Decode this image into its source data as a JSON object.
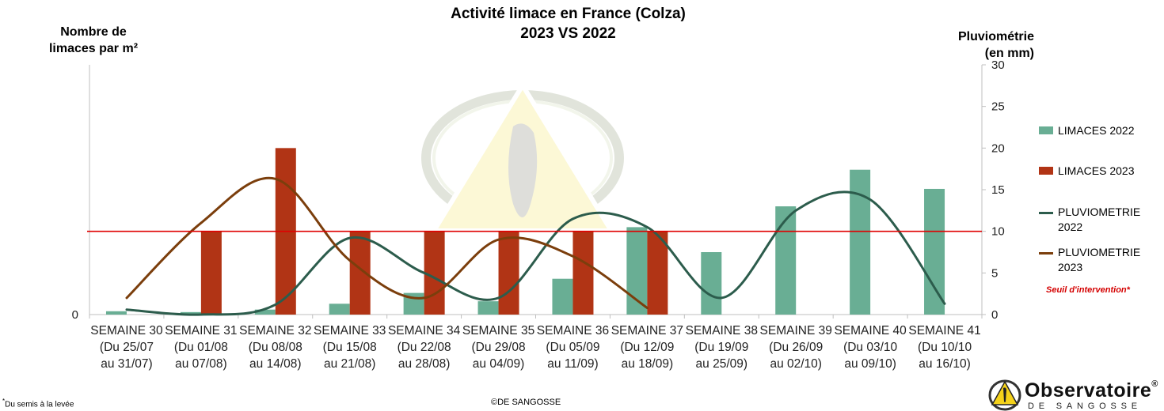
{
  "title_line1": "Activité limace en France (Colza)",
  "title_line2": "2023 VS 2022",
  "colors": {
    "limaces_2022": "#69ae94",
    "limaces_2023": "#b13415",
    "pluvio_2022": "#2c5c4c",
    "pluvio_2023": "#7b3e0c",
    "seuil": "#e00000"
  },
  "legend": {
    "limaces_2022": "LIMACES 2022",
    "limaces_2023": "LIMACES 2023",
    "pluvio_2022": "PLUVIOMETRIE\n2022",
    "pluvio_2023": "PLUVIOMETRIE\n2023",
    "seuil": "Seuil d'intervention*"
  },
  "left_axis_label": "Nombre de\nlimaces par m²",
  "right_axis_label": "Pluviométrie\n(en mm)",
  "footnote_star": "*",
  "footnote_text": "Du semis à la levée",
  "copyright": "©DE SANGOSSE",
  "logo": {
    "name": "Observatoire",
    "mark": "®",
    "sub": "DE SANGOSSE"
  },
  "chart_data": {
    "type": "bar",
    "categories": [
      "SEMAINE 30\n(Du 25/07\nau 31/07)",
      "SEMAINE 31\n(Du 01/08\nau 07/08)",
      "SEMAINE 32\n(Du 08/08\nau 14/08)",
      "SEMAINE 33\n(Du 15/08\nau 21/08)",
      "SEMAINE 34\n(Du 22/08\nau 28/08)",
      "SEMAINE 35\n(Du 29/08\nau 04/09)",
      "SEMAINE 36\n(Du 05/09\nau 11/09)",
      "SEMAINE 37\n(Du 12/09\nau 18/09)",
      "SEMAINE 38\n(Du 19/09\nau 25/09)",
      "SEMAINE 39\n(Du 26/09\nau 02/10)",
      "SEMAINE 40\n(Du 03/10\nau 09/10)",
      "SEMAINE 41\n(Du 10/10\nau 16/10)"
    ],
    "bar_series": [
      {
        "name": "LIMACES 2022",
        "values": [
          0.4,
          0.3,
          0.6,
          1.3,
          2.6,
          1.6,
          4.3,
          10.5,
          7.5,
          13.0,
          17.4,
          15.1
        ]
      },
      {
        "name": "LIMACES 2023",
        "values": [
          null,
          10.0,
          20.0,
          10.0,
          10.0,
          10.0,
          10.0,
          10.0,
          null,
          null,
          null,
          null
        ]
      }
    ],
    "line_series": [
      {
        "name": "PLUVIOMETRIE 2022",
        "axis": "right",
        "values": [
          0.6,
          0.0,
          1.2,
          9.2,
          5.0,
          2.0,
          11.5,
          10.5,
          2.0,
          12.5,
          13.8,
          1.3
        ]
      },
      {
        "name": "PLUVIOMETRIE 2023",
        "axis": "right",
        "values": [
          2.0,
          11.0,
          16.3,
          6.5,
          2.0,
          9.0,
          7.0,
          0.8
        ]
      }
    ],
    "threshold": {
      "label": "Seuil d'intervention*",
      "value": 10
    },
    "left_axis": {
      "label": "Nombre de limaces par m²",
      "ticks": [
        0
      ],
      "ylim": [
        0,
        30
      ]
    },
    "right_axis": {
      "label": "Pluviométrie (en mm)",
      "ticks": [
        0,
        5,
        10,
        15,
        20,
        25,
        30
      ],
      "ylim": [
        0,
        30
      ]
    },
    "grid": false,
    "legend_position": "right"
  }
}
